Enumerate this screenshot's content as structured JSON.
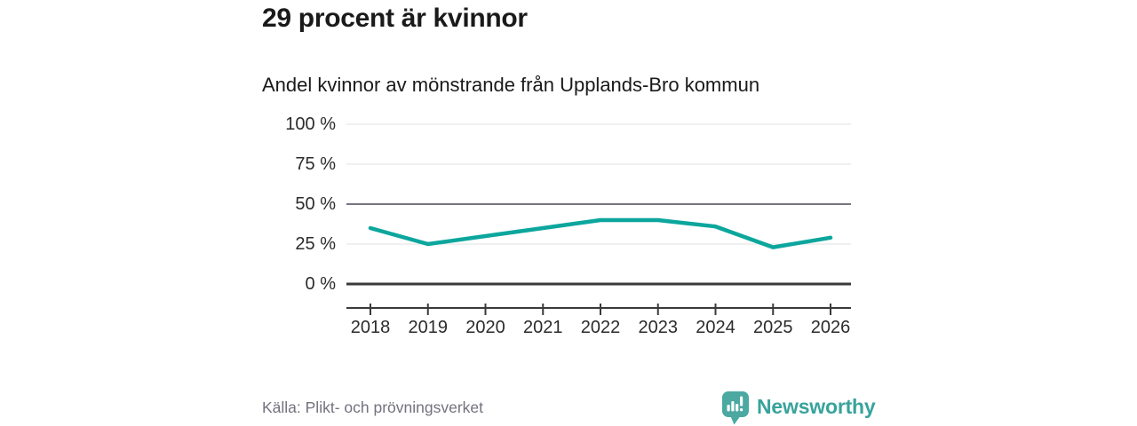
{
  "header": {
    "title": "29 procent är kvinnor",
    "subtitle": "Andel kvinnor av mönstrande från Upplands-Bro kommun"
  },
  "footer": {
    "source": "Källa: Plikt- och prövningsverket",
    "brand": "Newsworthy"
  },
  "colors": {
    "line": "#0ca69d",
    "grid_light": "#e2e2e2",
    "grid_mid": "#76747e",
    "axis_dark": "#3a3a3a",
    "brand_icon": "#4ba9a2",
    "brand_text": "#38a39c",
    "text_dark": "#1a1a1a",
    "text_axis": "#2b2b2b",
    "text_source": "#73727e"
  },
  "chart_data": {
    "type": "line",
    "x": [
      "2018",
      "2019",
      "2020",
      "2021",
      "2022",
      "2023",
      "2024",
      "2025",
      "2026"
    ],
    "series": [
      {
        "name": "Andel kvinnor av mönstrande",
        "values": [
          35,
          25,
          30,
          35,
          40,
          40,
          36,
          23,
          29
        ]
      }
    ],
    "unit": "%",
    "title": "29 procent är kvinnor",
    "subtitle": "Andel kvinnor av mönstrande från Upplands-Bro kommun",
    "ylim": [
      0,
      100
    ],
    "yticks": [
      {
        "value": 100,
        "label": "100 %"
      },
      {
        "value": 75,
        "label": "75 %"
      },
      {
        "value": 50,
        "label": "50 %"
      },
      {
        "value": 25,
        "label": "25 %"
      },
      {
        "value": 0,
        "label": "0 %"
      }
    ],
    "grid": "horizontal",
    "emphasized_gridlines": [
      50,
      0
    ],
    "legend": "none"
  }
}
